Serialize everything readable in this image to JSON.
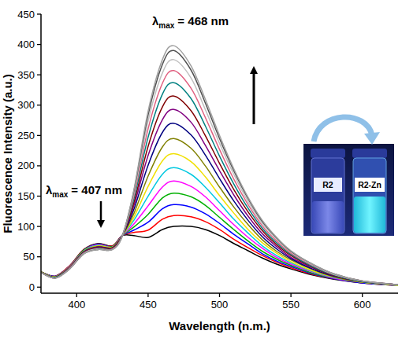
{
  "chart_data": {
    "type": "line",
    "x_label": "Wavelength (n.m.)",
    "y_label": "Fluorescence Intensity (a.u.)",
    "xlim": [
      375,
      625
    ],
    "xticks": [
      400,
      450,
      500,
      550,
      600
    ],
    "ylim": [
      -10,
      450
    ],
    "yticks": [
      0,
      50,
      100,
      150,
      200,
      250,
      300,
      350,
      400,
      450
    ],
    "grid": false,
    "x": [
      375,
      385,
      395,
      405,
      415,
      425,
      432,
      440,
      450,
      460,
      468,
      480,
      490,
      500,
      510,
      520,
      530,
      540,
      550,
      565,
      580,
      600,
      625
    ],
    "series": [
      {
        "color": "#000000",
        "values": [
          25,
          18,
          35,
          62,
          72,
          68,
          85,
          85,
          82,
          95,
          100,
          100,
          95,
          85,
          72,
          60,
          48,
          38,
          30,
          20,
          13,
          7,
          3
        ]
      },
      {
        "color": "#ff0000",
        "values": [
          25,
          18,
          35,
          62,
          71,
          68,
          85,
          90,
          94,
          112,
          118,
          116,
          108,
          95,
          79,
          65,
          52,
          41,
          32,
          21,
          14,
          7,
          3
        ]
      },
      {
        "color": "#0000ff",
        "values": [
          25,
          18,
          34,
          61,
          71,
          67,
          85,
          94,
          107,
          129,
          136,
          132,
          121,
          105,
          87,
          71,
          55,
          43,
          34,
          22,
          14,
          7,
          3
        ]
      },
      {
        "color": "#00b000",
        "values": [
          25,
          17,
          34,
          61,
          70,
          67,
          85,
          99,
          120,
          147,
          155,
          149,
          135,
          115,
          95,
          76,
          59,
          46,
          36,
          23,
          15,
          8,
          3
        ]
      },
      {
        "color": "#ff00ff",
        "values": [
          25,
          17,
          34,
          60,
          70,
          66,
          85,
          104,
          134,
          165,
          175,
          166,
          149,
          126,
          103,
          82,
          64,
          49,
          38,
          25,
          15,
          8,
          3
        ]
      },
      {
        "color": "#00c8e0",
        "values": [
          25,
          17,
          33,
          60,
          69,
          66,
          85,
          110,
          150,
          186,
          197,
          186,
          165,
          139,
          112,
          89,
          68,
          52,
          40,
          26,
          16,
          8,
          3
        ]
      },
      {
        "color": "#f0e000",
        "values": [
          25,
          17,
          33,
          59,
          68,
          66,
          85,
          115,
          166,
          208,
          220,
          207,
          182,
          151,
          122,
          95,
          73,
          56,
          42,
          27,
          17,
          8,
          3
        ]
      },
      {
        "color": "#808000",
        "values": [
          25,
          17,
          33,
          59,
          67,
          65,
          85,
          121,
          183,
          231,
          245,
          229,
          200,
          165,
          132,
          103,
          78,
          59,
          45,
          29,
          17,
          8,
          4
        ]
      },
      {
        "color": "#000080",
        "values": [
          24,
          16,
          32,
          58,
          66,
          65,
          85,
          128,
          201,
          255,
          270,
          251,
          218,
          179,
          142,
          110,
          83,
          63,
          47,
          30,
          18,
          9,
          4
        ]
      },
      {
        "color": "#800080",
        "values": [
          24,
          16,
          32,
          57,
          66,
          64,
          85,
          134,
          217,
          276,
          293,
          272,
          234,
          192,
          152,
          117,
          88,
          67,
          49,
          32,
          19,
          9,
          4
        ]
      },
      {
        "color": "#800000",
        "values": [
          24,
          16,
          31,
          57,
          65,
          64,
          85,
          139,
          232,
          297,
          315,
          291,
          250,
          204,
          161,
          124,
          93,
          70,
          52,
          33,
          19,
          9,
          4
        ]
      },
      {
        "color": "#008080",
        "values": [
          24,
          16,
          31,
          56,
          64,
          63,
          85,
          145,
          247,
          318,
          337,
          311,
          266,
          216,
          170,
          130,
          97,
          73,
          54,
          34,
          20,
          9,
          4
        ]
      },
      {
        "color": "#e06080",
        "values": [
          24,
          15,
          31,
          56,
          63,
          63,
          85,
          150,
          261,
          336,
          357,
          328,
          280,
          227,
          178,
          136,
          101,
          76,
          56,
          36,
          21,
          10,
          4
        ]
      },
      {
        "color": "#c0c0c0",
        "values": [
          24,
          15,
          30,
          56,
          63,
          62,
          85,
          154,
          274,
          353,
          375,
          345,
          293,
          237,
          186,
          141,
          105,
          79,
          58,
          37,
          21,
          10,
          4
        ]
      },
      {
        "color": "#505050",
        "values": [
          24,
          15,
          30,
          55,
          62,
          62,
          85,
          158,
          284,
          367,
          390,
          358,
          304,
          245,
          192,
          146,
          108,
          81,
          59,
          38,
          22,
          10,
          4
        ]
      },
      {
        "color": "#a0a0a0",
        "values": [
          24,
          15,
          30,
          55,
          62,
          62,
          85,
          160,
          290,
          375,
          398,
          365,
          310,
          250,
          195,
          148,
          110,
          82,
          60,
          38,
          22,
          10,
          4
        ]
      }
    ],
    "annotations": [
      {
        "symbol": "λ",
        "subscript": "max",
        "text": "= 468 nm"
      },
      {
        "symbol": "λ",
        "subscript": "max",
        "text": "= 407 nm"
      }
    ],
    "inset_labels": [
      "R2",
      "R2-Zn"
    ]
  }
}
